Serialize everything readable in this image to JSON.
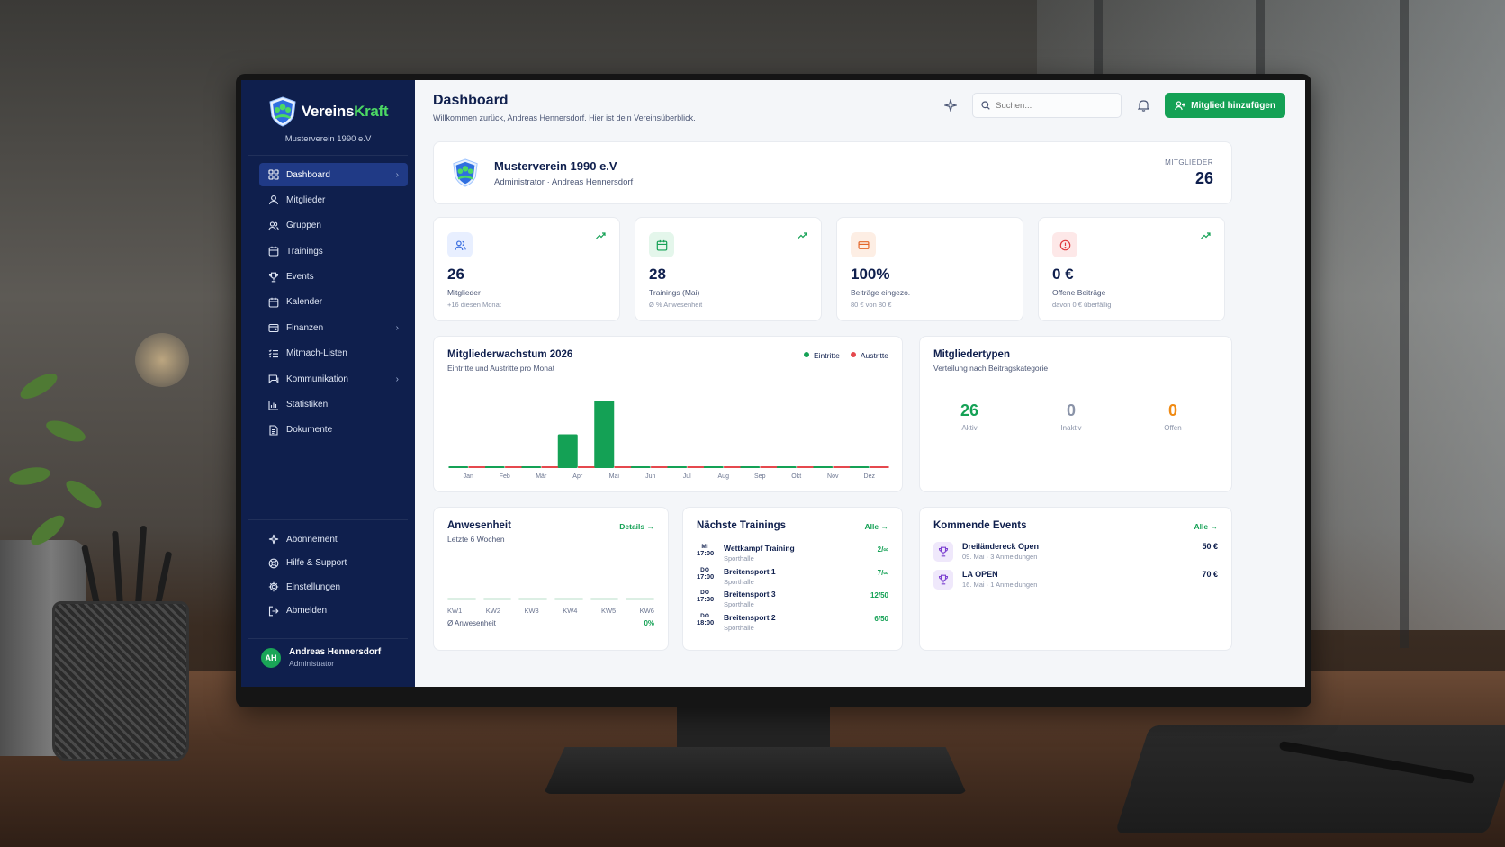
{
  "brand": {
    "name_part1": "Vereins",
    "name_part2": "Kraft",
    "club_subtitle": "Musterverein 1990 e.V"
  },
  "sidebar": {
    "items": [
      {
        "label": "Dashboard",
        "icon": "grid-icon",
        "active": true,
        "has_submenu": true
      },
      {
        "label": "Mitglieder",
        "icon": "user-icon"
      },
      {
        "label": "Gruppen",
        "icon": "users-icon"
      },
      {
        "label": "Trainings",
        "icon": "calendar-icon"
      },
      {
        "label": "Events",
        "icon": "trophy-icon"
      },
      {
        "label": "Kalender",
        "icon": "calendar-icon"
      },
      {
        "label": "Finanzen",
        "icon": "wallet-icon",
        "has_submenu": true
      },
      {
        "label": "Mitmach-Listen",
        "icon": "list-icon"
      },
      {
        "label": "Kommunikation",
        "icon": "chat-icon",
        "has_submenu": true
      },
      {
        "label": "Statistiken",
        "icon": "bar-chart-icon"
      },
      {
        "label": "Dokumente",
        "icon": "document-icon"
      }
    ],
    "bottom_items": [
      {
        "label": "Abonnement",
        "icon": "sparkle-icon"
      },
      {
        "label": "Hilfe & Support",
        "icon": "lifebuoy-icon"
      },
      {
        "label": "Einstellungen",
        "icon": "gear-icon"
      },
      {
        "label": "Abmelden",
        "icon": "logout-icon"
      }
    ],
    "user": {
      "initials": "AH",
      "name": "Andreas Hennersdorf",
      "role": "Administrator"
    }
  },
  "header": {
    "title": "Dashboard",
    "subtitle": "Willkommen zurück, Andreas Hennersdorf. Hier ist dein Vereinsüberblick.",
    "search_placeholder": "Suchen...",
    "add_member_label": "Mitglied hinzufügen"
  },
  "club_card": {
    "name": "Musterverein 1990 e.V",
    "role_line": "Administrator · Andreas Hennersdorf",
    "members_label": "MITGLIEDER",
    "members_value": "26"
  },
  "stats": [
    {
      "value": "26",
      "label": "Mitglieder",
      "note": "+16 diesen Monat",
      "icon": "users-icon",
      "color": "#3b6fe0",
      "bg": "#e8efff",
      "trend": true
    },
    {
      "value": "28",
      "label": "Trainings (Mai)",
      "note": "Ø % Anwesenheit",
      "icon": "calendar-icon",
      "color": "#14a155",
      "bg": "#e4f6eb",
      "trend": true
    },
    {
      "value": "100%",
      "label": "Beiträge eingezo.",
      "note": "80 € von 80 €",
      "icon": "credit-card-icon",
      "color": "#e3672a",
      "bg": "#fdeee4",
      "trend": false
    },
    {
      "value": "0 €",
      "label": "Offene Beiträge",
      "note": "davon 0 € überfällig",
      "icon": "alert-icon",
      "color": "#e0393e",
      "bg": "#fde8e8",
      "trend": true
    }
  ],
  "growth": {
    "title": "Mitgliederwachstum 2026",
    "subtitle": "Eintritte und Austritte pro Monat",
    "legend": {
      "in_label": "Eintritte",
      "out_label": "Austritte"
    },
    "colors": {
      "in": "#14a155",
      "out": "#e5484d"
    }
  },
  "chart_data": {
    "type": "bar",
    "title": "Mitgliederwachstum 2026",
    "subtitle": "Eintritte und Austritte pro Monat",
    "categories": [
      "Jan",
      "Feb",
      "Mär",
      "Apr",
      "Mai",
      "Jun",
      "Jul",
      "Aug",
      "Sep",
      "Okt",
      "Nov",
      "Dez"
    ],
    "series": [
      {
        "name": "Eintritte",
        "values": [
          0,
          0,
          0,
          8,
          16,
          0,
          0,
          0,
          0,
          0,
          0,
          0
        ]
      },
      {
        "name": "Austritte",
        "values": [
          0,
          0,
          0,
          0,
          0,
          0,
          0,
          0,
          0,
          0,
          0,
          0
        ]
      }
    ],
    "ylim": [
      0,
      16
    ],
    "grid": false,
    "legend_position": "top-right"
  },
  "member_types": {
    "title": "Mitgliedertypen",
    "subtitle": "Verteilung nach Beitragskategorie",
    "items": [
      {
        "value": "26",
        "label": "Aktiv",
        "color": "#14a155"
      },
      {
        "value": "0",
        "label": "Inaktiv",
        "color": "#8a93a8"
      },
      {
        "value": "0",
        "label": "Offen",
        "color": "#f08a12"
      }
    ]
  },
  "attendance": {
    "title": "Anwesenheit",
    "link": "Details →",
    "subtitle": "Letzte 6 Wochen",
    "weeks": [
      "KW1",
      "KW2",
      "KW3",
      "KW4",
      "KW5",
      "KW6"
    ],
    "footer_label": "Ø Anwesenheit",
    "footer_value": "0%"
  },
  "trainings": {
    "title": "Nächste Trainings",
    "link": "Alle →",
    "items": [
      {
        "day": "MI",
        "time": "17:00",
        "name": "Wettkampf Training",
        "place": "Sporthalle",
        "count": "2/∞"
      },
      {
        "day": "DO",
        "time": "17:00",
        "name": "Breitensport 1",
        "place": "Sporthalle",
        "count": "7/∞"
      },
      {
        "day": "DO",
        "time": "17:30",
        "name": "Breitensport 3",
        "place": "Sporthalle",
        "count": "12/50"
      },
      {
        "day": "DO",
        "time": "18:00",
        "name": "Breitensport 2",
        "place": "Sporthalle",
        "count": "6/50"
      }
    ]
  },
  "events": {
    "title": "Kommende Events",
    "link": "Alle →",
    "items": [
      {
        "name": "Dreiländereck Open",
        "meta": "09. Mai · 3 Anmeldungen",
        "price": "50 €",
        "icon": "trophy-icon"
      },
      {
        "name": "LA OPEN",
        "meta": "16. Mai · 1 Anmeldungen",
        "price": "70 €",
        "icon": "trophy-icon"
      }
    ]
  }
}
